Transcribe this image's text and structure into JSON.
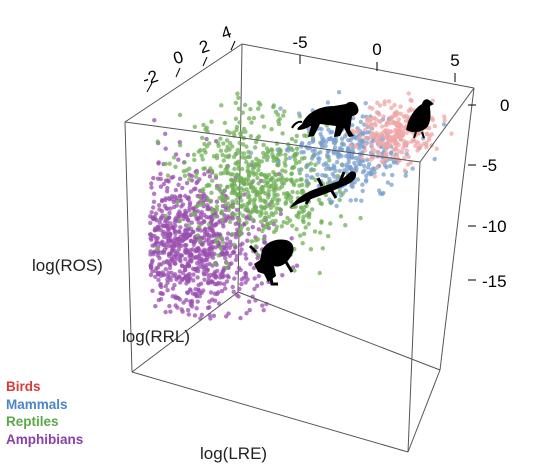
{
  "chart_data": {
    "type": "scatter",
    "title": "",
    "axes": {
      "x": {
        "label": "log(ROS)",
        "ticks": [
          -2,
          0,
          2,
          4
        ]
      },
      "y": {
        "label": "log(RRL)",
        "ticks": [
          -5,
          0,
          5
        ]
      },
      "z": {
        "label": "log(LRE)",
        "ticks": [
          0,
          -5,
          -10,
          -15
        ]
      }
    },
    "legend": [
      {
        "name": "Birds",
        "color": "#d93a3a"
      },
      {
        "name": "Mammals",
        "color": "#4a86c8"
      },
      {
        "name": "Reptiles",
        "color": "#5aa84a"
      },
      {
        "name": "Amphibians",
        "color": "#8b3fa8"
      }
    ],
    "series": [
      {
        "name": "Birds",
        "color": "#f2a6a6",
        "centroid": {
          "ros": 3.2,
          "rrl": 5.5,
          "lre": -0.5
        }
      },
      {
        "name": "Mammals",
        "color": "#7a9fd0",
        "centroid": {
          "ros": 2.5,
          "rrl": 3.0,
          "lre": -2.5
        }
      },
      {
        "name": "Reptiles",
        "color": "#6fb055",
        "centroid": {
          "ros": 0.5,
          "rrl": -1.5,
          "lre": -6.5
        }
      },
      {
        "name": "Amphibians",
        "color": "#9a4fb0",
        "centroid": {
          "ros": -1.5,
          "rrl": -4.5,
          "lre": -12.5
        }
      }
    ],
    "icons": [
      "tiger-icon",
      "bird-icon",
      "lizard-icon",
      "frog-icon"
    ],
    "box": true,
    "grid": false,
    "legend_position": "bottom-left"
  }
}
